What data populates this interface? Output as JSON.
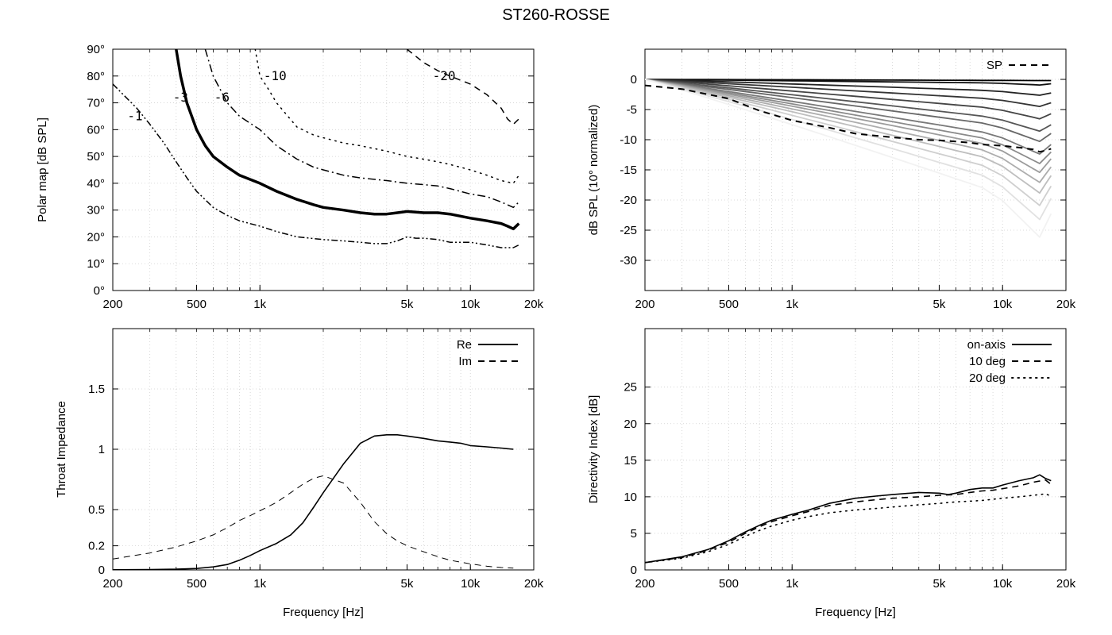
{
  "page_title": "ST260-ROSSE",
  "chart_data": [
    {
      "id": "polar",
      "type": "line",
      "title": "",
      "xlabel": "",
      "ylabel": "Polar map [dB SPL]",
      "xscale": "log",
      "xlim": [
        200,
        20000
      ],
      "ylim": [
        0,
        90
      ],
      "grid": true,
      "xticks": [
        {
          "v": 200,
          "l": "200"
        },
        {
          "v": 500,
          "l": "500"
        },
        {
          "v": 1000,
          "l": "1k"
        },
        {
          "v": 5000,
          "l": "5k"
        },
        {
          "v": 10000,
          "l": "10k"
        },
        {
          "v": 20000,
          "l": "20k"
        }
      ],
      "yticks": [
        {
          "v": 0,
          "l": "0°"
        },
        {
          "v": 10,
          "l": "10°"
        },
        {
          "v": 20,
          "l": "20°"
        },
        {
          "v": 30,
          "l": "30°"
        },
        {
          "v": 40,
          "l": "40°"
        },
        {
          "v": 50,
          "l": "50°"
        },
        {
          "v": 60,
          "l": "60°"
        },
        {
          "v": 70,
          "l": "70°"
        },
        {
          "v": 80,
          "l": "80°"
        },
        {
          "v": 90,
          "l": "90°"
        }
      ],
      "series": [
        {
          "name": "-1",
          "style": "dashdotdot",
          "width": 1.5,
          "color": "#000000",
          "x": [
            200,
            260,
            300,
            350,
            400,
            450,
            500,
            600,
            700,
            800,
            1000,
            1200,
            1500,
            2000,
            2500,
            3000,
            3500,
            4000,
            4500,
            5000,
            5500,
            6000,
            7000,
            8000,
            9000,
            10000,
            12000,
            14000,
            16000,
            17000
          ],
          "y": [
            77,
            68,
            62,
            55,
            48,
            42,
            37,
            31,
            28,
            26,
            24,
            22,
            20,
            19,
            18.5,
            18,
            17.5,
            17.5,
            18.5,
            20,
            19.5,
            19.5,
            19,
            18,
            18,
            18,
            17,
            16,
            16,
            17
          ]
        },
        {
          "name": "-3",
          "style": "solid",
          "width": 3.5,
          "color": "#000000",
          "x": [
            400,
            420,
            450,
            500,
            550,
            600,
            700,
            800,
            1000,
            1200,
            1500,
            1800,
            2000,
            2500,
            3000,
            3500,
            4000,
            4500,
            5000,
            6000,
            7000,
            8000,
            10000,
            12000,
            14000,
            15000,
            16000,
            17000
          ],
          "y": [
            90,
            80,
            70,
            60,
            54,
            50,
            46,
            43,
            40,
            37,
            34,
            32,
            31,
            30,
            29,
            28.5,
            28.5,
            29,
            29.5,
            29,
            29,
            28.5,
            27,
            26,
            25,
            24,
            23,
            25
          ]
        },
        {
          "name": "-6",
          "style": "dashdot",
          "width": 1.5,
          "color": "#000000",
          "x": [
            550,
            600,
            700,
            800,
            1000,
            1200,
            1500,
            1800,
            2000,
            2500,
            3000,
            4000,
            5000,
            6000,
            7000,
            8000,
            10000,
            12000,
            14000,
            16000,
            17000
          ],
          "y": [
            90,
            80,
            70,
            65,
            60,
            54,
            49,
            46,
            45,
            43,
            42,
            41,
            40,
            39.5,
            39,
            38,
            36,
            35,
            33,
            31,
            33
          ]
        },
        {
          "name": "-10",
          "style": "dotted",
          "width": 1.5,
          "color": "#000000",
          "x": [
            950,
            1000,
            1100,
            1200,
            1500,
            1800,
            2000,
            2500,
            3000,
            4000,
            5000,
            6000,
            7000,
            8000,
            10000,
            12000,
            14000,
            16000,
            17000
          ],
          "y": [
            90,
            80,
            75,
            70,
            61,
            58,
            57,
            55,
            54,
            52,
            50,
            49,
            48,
            47,
            45,
            43,
            41,
            40,
            43
          ]
        },
        {
          "name": "-20",
          "style": "dashed",
          "width": 1.5,
          "color": "#000000",
          "x": [
            5000,
            6000,
            7000,
            8000,
            10000,
            12000,
            14000,
            15000,
            16000,
            17000
          ],
          "y": [
            90,
            85,
            82,
            80,
            77,
            73,
            68,
            64,
            62,
            64
          ]
        }
      ],
      "contour_labels": [
        {
          "text": "-1",
          "x": 255,
          "y": 65
        },
        {
          "text": "-3",
          "x": 420,
          "y": 72
        },
        {
          "text": "-6",
          "x": 660,
          "y": 72
        },
        {
          "text": "-10",
          "x": 1180,
          "y": 80
        },
        {
          "text": "-20",
          "x": 7500,
          "y": 80
        }
      ]
    },
    {
      "id": "spl",
      "type": "line",
      "title": "",
      "xlabel": "",
      "ylabel": "dB SPL (10° normalized)",
      "xscale": "log",
      "xlim": [
        200,
        20000
      ],
      "ylim": [
        -35,
        5
      ],
      "grid": true,
      "xticks": [
        {
          "v": 200,
          "l": "200"
        },
        {
          "v": 500,
          "l": "500"
        },
        {
          "v": 1000,
          "l": "1k"
        },
        {
          "v": 5000,
          "l": "5k"
        },
        {
          "v": 10000,
          "l": "10k"
        },
        {
          "v": 20000,
          "l": "20k"
        }
      ],
      "yticks": [
        {
          "v": 0,
          "l": "0"
        },
        {
          "v": -5,
          "l": "-5"
        },
        {
          "v": -10,
          "l": "-10"
        },
        {
          "v": -15,
          "l": "-15"
        },
        {
          "v": -20,
          "l": "-20"
        },
        {
          "v": -25,
          "l": "-25"
        },
        {
          "v": -30,
          "l": "-30"
        }
      ],
      "x": [
        200,
        300,
        500,
        700,
        1000,
        1500,
        2000,
        3000,
        4000,
        5000,
        6000,
        7000,
        8000,
        10000,
        12000,
        14000,
        15000,
        16000,
        17000
      ],
      "family": {
        "count": 15,
        "start_color": "#000000",
        "end_color": "#f2f2f2",
        "end_offsets": [
          -0.2,
          -0.7,
          -2.2,
          -3.8,
          -5.6,
          -7.4,
          -8.8,
          -10.6,
          -11.8,
          -12.9,
          -14.2,
          -15.6,
          -17.3,
          -19.3,
          -21.8
        ],
        "high_freq_bend": [
          0,
          0.05,
          0.1,
          0.16,
          0.22,
          0.28,
          0.35,
          0.42,
          0.5,
          0.58,
          0.66,
          0.74,
          0.82,
          0.9,
          1.0
        ]
      },
      "sp_series": {
        "name": "SP",
        "style": "dashed",
        "width": 2,
        "color": "#000000",
        "y": [
          -1,
          -1.6,
          -3.2,
          -5.2,
          -6.8,
          -8,
          -9,
          -9.6,
          -10,
          -10.1,
          -10.3,
          -10.5,
          -10.8,
          -11,
          -11.3,
          -11.6,
          -12,
          -11.8,
          -11.5
        ]
      },
      "legend": [
        {
          "label": "SP",
          "style": "dashed"
        }
      ]
    },
    {
      "id": "impedance",
      "type": "line",
      "title": "",
      "xlabel": "Frequency [Hz]",
      "ylabel": "Throat Impedance",
      "xscale": "log",
      "xlim": [
        200,
        20000
      ],
      "ylim": [
        0,
        2
      ],
      "grid": true,
      "xticks": [
        {
          "v": 200,
          "l": "200"
        },
        {
          "v": 500,
          "l": "500"
        },
        {
          "v": 1000,
          "l": "1k"
        },
        {
          "v": 5000,
          "l": "5k"
        },
        {
          "v": 10000,
          "l": "10k"
        },
        {
          "v": 20000,
          "l": "20k"
        }
      ],
      "yticks": [
        {
          "v": 0,
          "l": "0"
        },
        {
          "v": 0.2,
          "l": "0.2"
        },
        {
          "v": 0.5,
          "l": "0.5"
        },
        {
          "v": 1,
          "l": "1"
        },
        {
          "v": 1.5,
          "l": "1.5"
        }
      ],
      "series": [
        {
          "name": "Re",
          "style": "solid",
          "width": 1.6,
          "color": "#000000",
          "x": [
            200,
            300,
            400,
            500,
            600,
            700,
            800,
            900,
            1000,
            1200,
            1400,
            1600,
            1800,
            2000,
            2500,
            3000,
            3500,
            4000,
            4500,
            5000,
            6000,
            7000,
            8000,
            9000,
            10000,
            12000,
            14000,
            16000
          ],
          "y": [
            0.001,
            0.003,
            0.006,
            0.012,
            0.025,
            0.045,
            0.08,
            0.12,
            0.16,
            0.22,
            0.29,
            0.39,
            0.52,
            0.64,
            0.88,
            1.05,
            1.11,
            1.12,
            1.12,
            1.11,
            1.09,
            1.07,
            1.06,
            1.05,
            1.03,
            1.02,
            1.01,
            1.0
          ]
        },
        {
          "name": "Im",
          "style": "dashed",
          "width": 1,
          "color": "#000000",
          "x": [
            200,
            300,
            400,
            500,
            600,
            700,
            800,
            900,
            1000,
            1200,
            1400,
            1600,
            1800,
            2000,
            2500,
            3000,
            3500,
            4000,
            4500,
            5000,
            6000,
            7000,
            8000,
            10000,
            12000,
            14000,
            16000
          ],
          "y": [
            0.09,
            0.14,
            0.19,
            0.24,
            0.29,
            0.35,
            0.41,
            0.45,
            0.49,
            0.56,
            0.64,
            0.71,
            0.76,
            0.78,
            0.72,
            0.56,
            0.4,
            0.3,
            0.24,
            0.2,
            0.15,
            0.11,
            0.08,
            0.05,
            0.03,
            0.02,
            0.015
          ]
        }
      ],
      "legend": [
        {
          "label": "Re",
          "style": "solid"
        },
        {
          "label": "Im",
          "style": "dashed"
        }
      ]
    },
    {
      "id": "di",
      "type": "line",
      "title": "",
      "xlabel": "Frequency [Hz]",
      "ylabel": "Directivity Index [dB]",
      "xscale": "log",
      "xlim": [
        200,
        20000
      ],
      "ylim": [
        0,
        33
      ],
      "grid": true,
      "xticks": [
        {
          "v": 200,
          "l": "200"
        },
        {
          "v": 500,
          "l": "500"
        },
        {
          "v": 1000,
          "l": "1k"
        },
        {
          "v": 5000,
          "l": "5k"
        },
        {
          "v": 10000,
          "l": "10k"
        },
        {
          "v": 20000,
          "l": "20k"
        }
      ],
      "yticks": [
        {
          "v": 0,
          "l": "0"
        },
        {
          "v": 5,
          "l": "5"
        },
        {
          "v": 10,
          "l": "10"
        },
        {
          "v": 15,
          "l": "15"
        },
        {
          "v": 20,
          "l": "20"
        },
        {
          "v": 25,
          "l": "25"
        }
      ],
      "series": [
        {
          "name": "on-axis",
          "style": "solid",
          "width": 1.6,
          "color": "#000000",
          "x": [
            200,
            300,
            400,
            500,
            600,
            700,
            800,
            1000,
            1200,
            1500,
            2000,
            2500,
            3000,
            4000,
            5000,
            5500,
            6000,
            7000,
            8000,
            9000,
            10000,
            12000,
            14000,
            15000,
            16000,
            17000
          ],
          "y": [
            1,
            1.8,
            2.8,
            4,
            5.2,
            6.1,
            6.8,
            7.6,
            8.2,
            9.1,
            9.8,
            10.1,
            10.3,
            10.6,
            10.5,
            10.3,
            10.5,
            11,
            11.2,
            11.2,
            11.6,
            12.2,
            12.6,
            13,
            12.5,
            12.2
          ]
        },
        {
          "name": "10 deg",
          "style": "dashed",
          "width": 1.6,
          "color": "#000000",
          "x": [
            200,
            300,
            400,
            500,
            600,
            700,
            800,
            1000,
            1200,
            1500,
            2000,
            2500,
            3000,
            4000,
            5000,
            6000,
            7000,
            8000,
            9000,
            10000,
            12000,
            14000,
            16000,
            17000
          ],
          "y": [
            1,
            1.7,
            2.7,
            3.8,
            5,
            5.9,
            6.6,
            7.4,
            8,
            8.8,
            9.3,
            9.6,
            9.8,
            10,
            10.2,
            10.3,
            10.6,
            10.8,
            10.9,
            11.1,
            11.5,
            12,
            12.3,
            11.7
          ]
        },
        {
          "name": "20 deg",
          "style": "dotted",
          "width": 1.6,
          "color": "#000000",
          "x": [
            200,
            300,
            400,
            500,
            600,
            700,
            800,
            1000,
            1200,
            1500,
            2000,
            2500,
            3000,
            4000,
            5000,
            6000,
            7000,
            8000,
            10000,
            12000,
            14000,
            16000,
            17000
          ],
          "y": [
            1,
            1.6,
            2.5,
            3.5,
            4.6,
            5.4,
            6,
            6.8,
            7.3,
            7.8,
            8.2,
            8.4,
            8.6,
            8.9,
            9.1,
            9.3,
            9.4,
            9.5,
            9.8,
            10,
            10.2,
            10.4,
            10.1
          ]
        }
      ],
      "legend": [
        {
          "label": "on-axis",
          "style": "solid"
        },
        {
          "label": "10 deg",
          "style": "dashed"
        },
        {
          "label": "20 deg",
          "style": "dotted"
        }
      ]
    }
  ]
}
